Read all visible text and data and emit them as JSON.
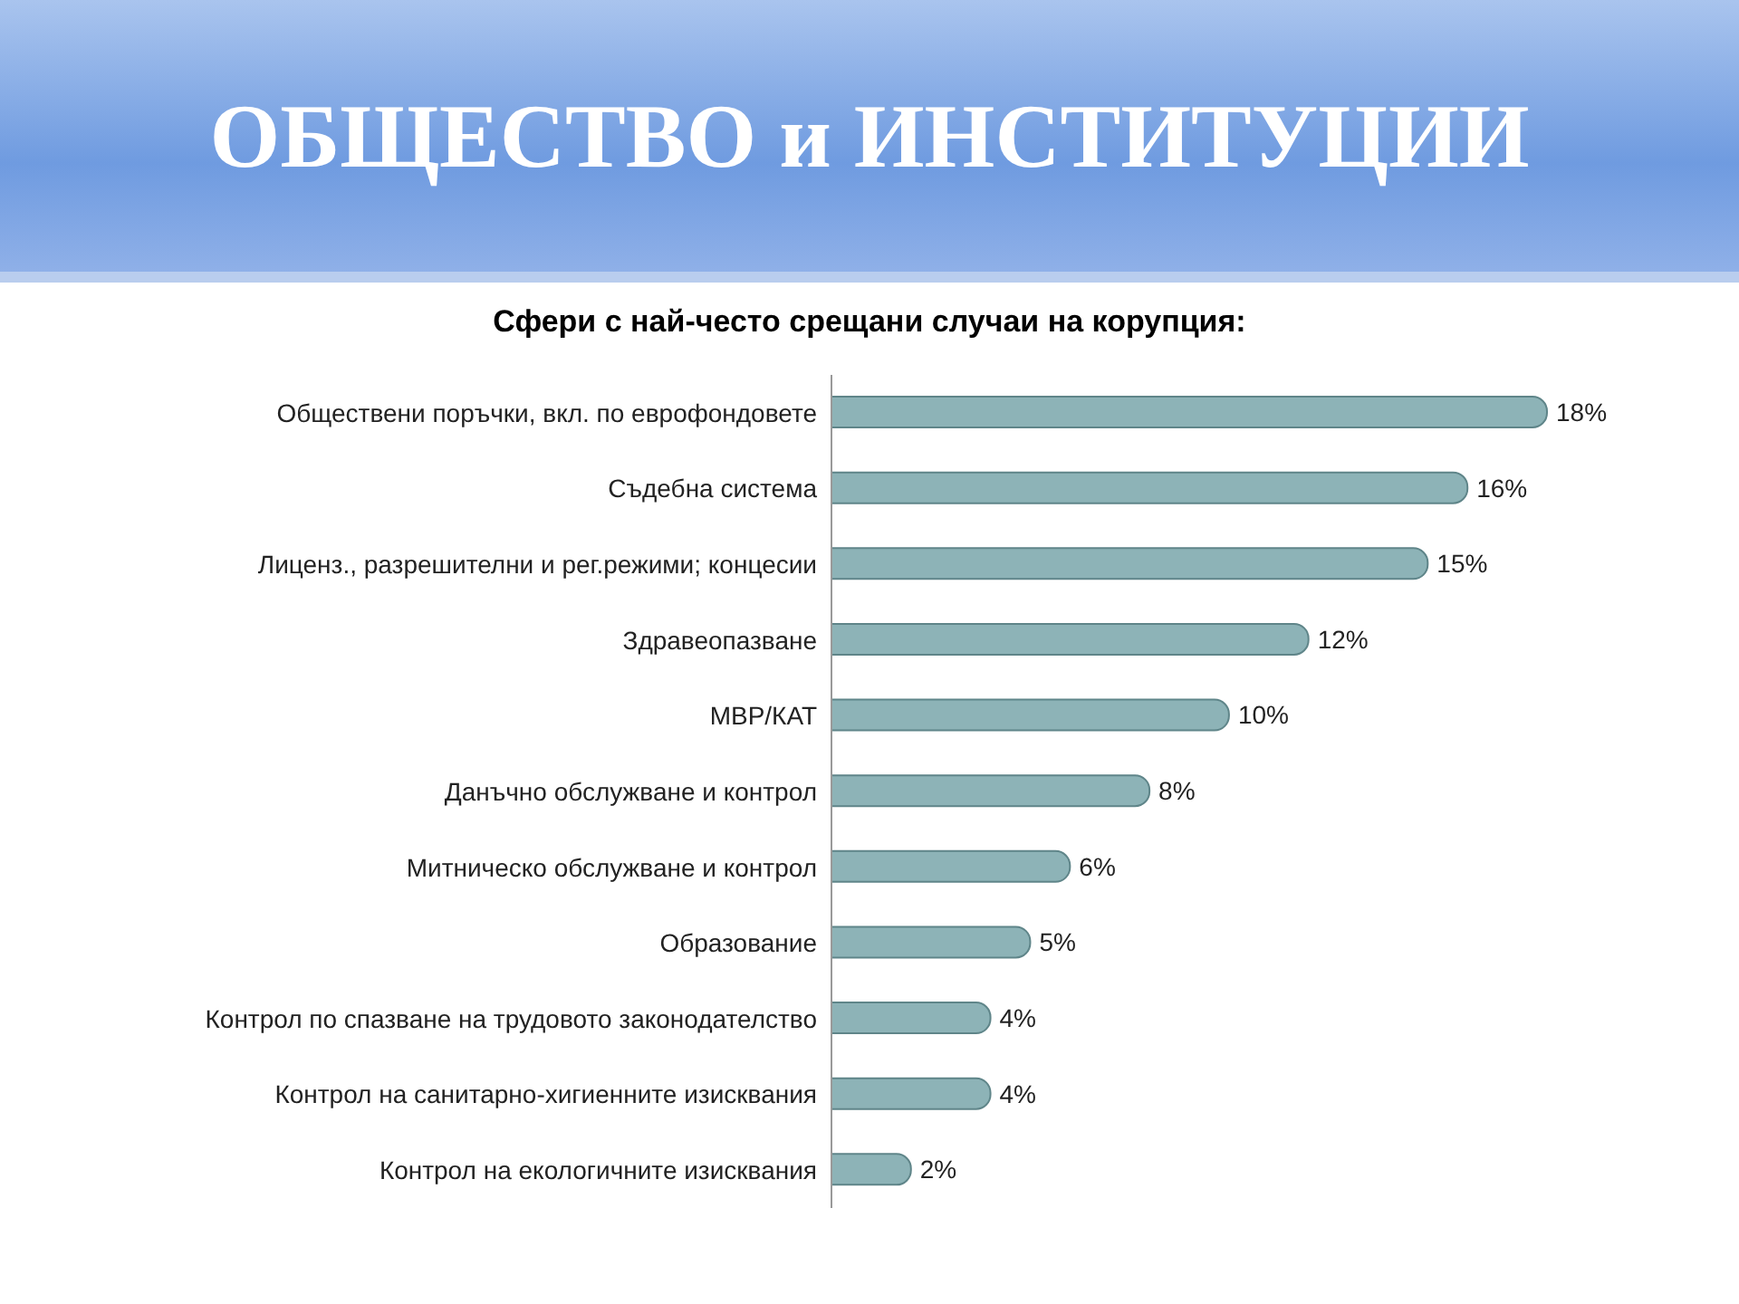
{
  "chart_data": {
    "type": "bar",
    "orientation": "horizontal",
    "title": "ОБЩЕСТВО и ИНСТИТУЦИИ",
    "subtitle": "Сфери с най-често срещани случаи на корупция:",
    "categories": [
      "Обществени  поръчки,  вкл.  по еврофондовете",
      "Съдебна система",
      "Лиценз.,  разрешителни  и рег.режими;  концесии",
      "Здравеопазване",
      "МВР/КАТ",
      "Данъчно  обслужване  и контрол",
      "Митническо  обслужване  и контрол",
      "Образование",
      "Контрол  по спазване на трудовото законодателство",
      "Контрол  на санитарно-хигиенните  изисквания",
      "Контрол  на екологичните  изисквания"
    ],
    "values": [
      18,
      16,
      15,
      12,
      10,
      8,
      6,
      5,
      4,
      4,
      2
    ],
    "value_labels": [
      "18%",
      "16%",
      "15%",
      "12%",
      "10%",
      "8%",
      "6%",
      "5%",
      "4%",
      "4%",
      "2%"
    ],
    "color": "#8db3b7",
    "grid": false
  }
}
